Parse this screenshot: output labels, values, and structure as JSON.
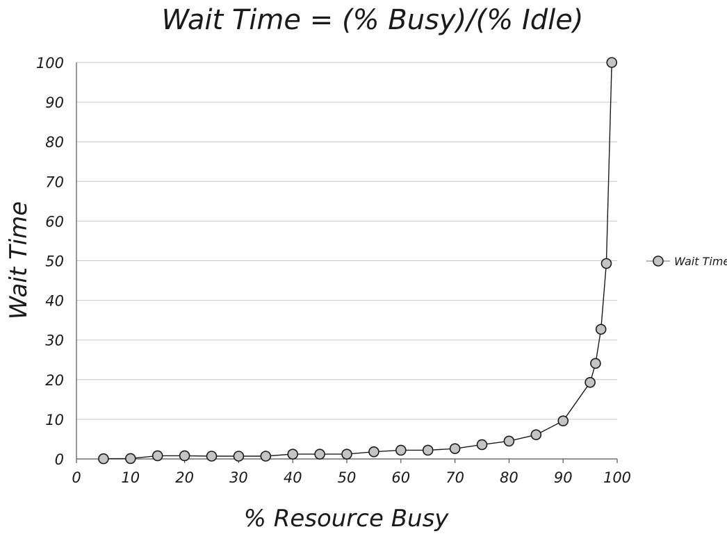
{
  "chart_data": {
    "type": "line",
    "title": "Wait Time = (% Busy)/(% Idle)",
    "xlabel": "% Resource Busy",
    "ylabel": "Wait Time",
    "xlim": [
      0,
      100
    ],
    "ylim": [
      0,
      100
    ],
    "x_ticks": [
      0,
      10,
      20,
      30,
      40,
      50,
      60,
      70,
      80,
      90,
      100
    ],
    "y_ticks": [
      0,
      10,
      20,
      30,
      40,
      50,
      60,
      70,
      80,
      90,
      100
    ],
    "grid": "horizontal",
    "legend_position": "right",
    "series": [
      {
        "name": "Wait Time",
        "color": "#c4c4c4",
        "points": [
          {
            "x": 5,
            "y": 0.05
          },
          {
            "x": 10,
            "y": 0.1
          },
          {
            "x": 15,
            "y": 0.8
          },
          {
            "x": 20,
            "y": 0.8
          },
          {
            "x": 25,
            "y": 0.7
          },
          {
            "x": 30,
            "y": 0.7
          },
          {
            "x": 35,
            "y": 0.7
          },
          {
            "x": 40,
            "y": 1.2
          },
          {
            "x": 45,
            "y": 1.2
          },
          {
            "x": 50,
            "y": 1.2
          },
          {
            "x": 55,
            "y": 1.8
          },
          {
            "x": 60,
            "y": 2.2
          },
          {
            "x": 65,
            "y": 2.2
          },
          {
            "x": 70,
            "y": 2.6
          },
          {
            "x": 75,
            "y": 3.6
          },
          {
            "x": 80,
            "y": 4.5
          },
          {
            "x": 85,
            "y": 6.1
          },
          {
            "x": 90,
            "y": 9.6
          },
          {
            "x": 95,
            "y": 19.3
          },
          {
            "x": 96,
            "y": 24.1
          },
          {
            "x": 97,
            "y": 32.7
          },
          {
            "x": 98,
            "y": 49.3
          },
          {
            "x": 99,
            "y": 100
          }
        ]
      }
    ]
  }
}
